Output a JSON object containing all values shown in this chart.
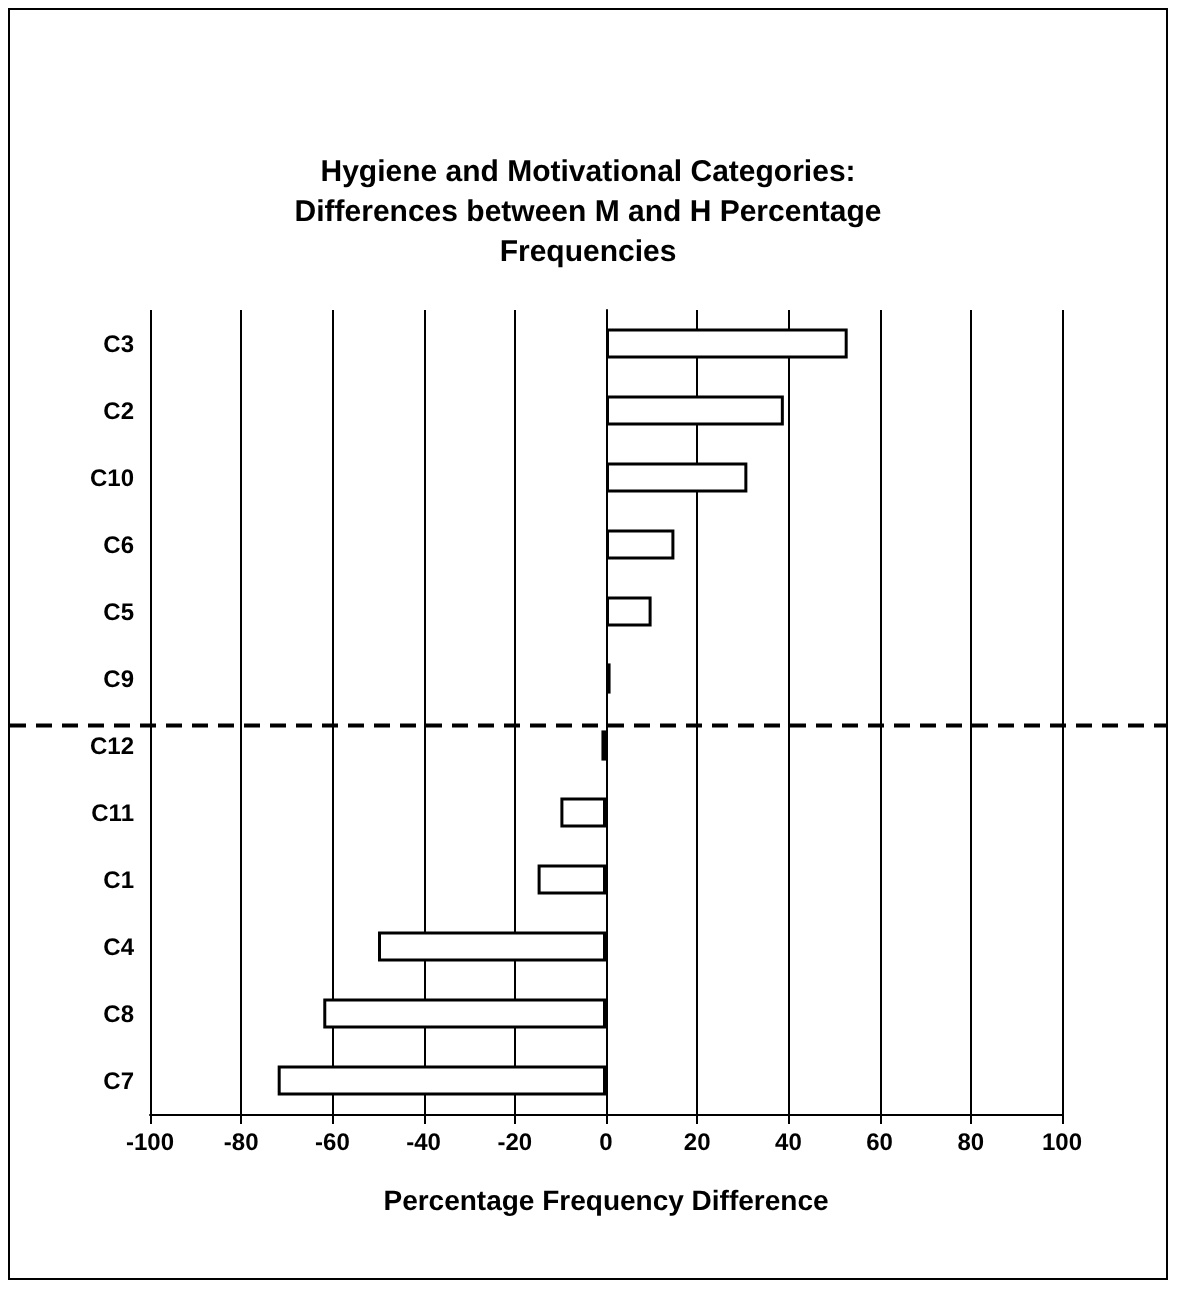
{
  "chart_data": {
    "type": "bar",
    "orientation": "horizontal",
    "title": "Hygiene and Motivational Categories:\nDifferences between M and H Percentage\nFrequencies",
    "xlabel": "Percentage Frequency Difference",
    "categories": [
      "C3",
      "C2",
      "C10",
      "C6",
      "C5",
      "C9",
      "C12",
      "C11",
      "C1",
      "C4",
      "C8",
      "C7"
    ],
    "series": [
      {
        "color": "#ffffff",
        "values": [
          53,
          39,
          31,
          15,
          10,
          1,
          -1,
          -10,
          -15,
          -50,
          -62,
          -72
        ]
      }
    ],
    "xlim": [
      -100,
      100
    ],
    "xticks": [
      -100,
      -80,
      -60,
      -40,
      -20,
      0,
      20,
      40,
      60,
      80,
      100
    ],
    "grid": "x",
    "ref_lines": [
      {
        "axis": "y",
        "value": "C12",
        "line_style": "dashed",
        "color": "#000000"
      }
    ]
  }
}
